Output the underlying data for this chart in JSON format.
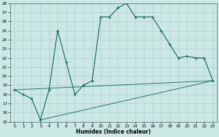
{
  "xlabel": "Humidex (Indice chaleur)",
  "bg_color": "#cce8e4",
  "grid_color": "#aaccca",
  "line_color": "#1a6e60",
  "xlim": [
    -0.5,
    23.5
  ],
  "ylim": [
    15,
    28
  ],
  "xticks": [
    0,
    1,
    2,
    3,
    4,
    5,
    6,
    7,
    8,
    9,
    10,
    11,
    12,
    13,
    14,
    15,
    16,
    17,
    18,
    19,
    20,
    21,
    22,
    23
  ],
  "yticks": [
    15,
    16,
    17,
    18,
    19,
    20,
    21,
    22,
    23,
    24,
    25,
    26,
    27,
    28
  ],
  "curve1_x": [
    0,
    1,
    2,
    3,
    4,
    5,
    6,
    7,
    8,
    9,
    10,
    11,
    12,
    13,
    14,
    15,
    16,
    17,
    18,
    19,
    20,
    21,
    22,
    23
  ],
  "curve1_y": [
    18.5,
    18.0,
    17.5,
    15.2,
    18.5,
    25.0,
    21.5,
    18.0,
    19.0,
    19.5,
    26.5,
    26.5,
    27.5,
    28.0,
    26.5,
    26.5,
    26.5,
    25.0,
    23.5,
    22.0,
    22.2,
    22.0,
    22.0,
    19.5
  ],
  "curve2_x": [
    0,
    23
  ],
  "curve2_y": [
    18.5,
    19.5
  ],
  "curve3_x": [
    3,
    23
  ],
  "curve3_y": [
    15.2,
    19.5
  ]
}
